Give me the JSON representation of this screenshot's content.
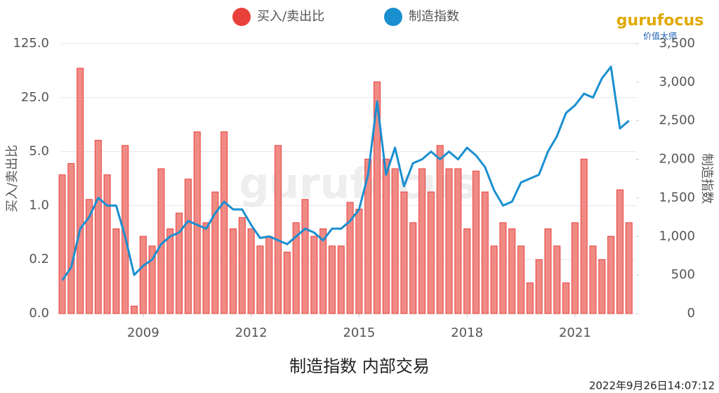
{
  "chart_data": {
    "type": "bar-line",
    "title": "制造指数 内部交易",
    "timestamp": "2022年9月26日14:07:12",
    "logo": "gurufocus",
    "logo_sub": "价值大师",
    "watermark": "gurufocus",
    "y_label": "买入/卖出比",
    "y2_label": "制造指数",
    "xlim": [
      2006.7,
      2022.7
    ],
    "xticks": [
      2009,
      2012,
      2015,
      2018,
      2021
    ],
    "ylim": [
      0.04,
      125
    ],
    "ylog": true,
    "yticks": [
      {
        "value": 0.04,
        "label": "0.0"
      },
      {
        "value": 0.2,
        "label": "0.2"
      },
      {
        "value": 1,
        "label": "1.0"
      },
      {
        "value": 5,
        "label": "5.0"
      },
      {
        "value": 25,
        "label": "25.0"
      },
      {
        "value": 125,
        "label": "125.0"
      }
    ],
    "y2lim": [
      0,
      3500
    ],
    "y2ticks": [
      0,
      500,
      {
        "value": 1000,
        "label": "1,000"
      },
      {
        "value": 1500,
        "label": "1,500"
      },
      {
        "value": 2000,
        "label": "2,000"
      },
      {
        "value": 2500,
        "label": "2,500"
      },
      {
        "value": 3000,
        "label": "3,000"
      },
      {
        "value": 3500,
        "label": "3,500"
      }
    ],
    "grid": true,
    "x": [
      2006.75,
      2007,
      2007.25,
      2007.5,
      2007.75,
      2008,
      2008.25,
      2008.5,
      2008.75,
      2009,
      2009.25,
      2009.5,
      2009.75,
      2010,
      2010.25,
      2010.5,
      2010.75,
      2011,
      2011.25,
      2011.5,
      2011.75,
      2012,
      2012.25,
      2012.5,
      2012.75,
      2013,
      2013.25,
      2013.5,
      2013.75,
      2014,
      2014.25,
      2014.5,
      2014.75,
      2015,
      2015.25,
      2015.5,
      2015.75,
      2016,
      2016.25,
      2016.5,
      2016.75,
      2017,
      2017.25,
      2017.5,
      2017.75,
      2018,
      2018.25,
      2018.5,
      2018.75,
      2019,
      2019.25,
      2019.5,
      2019.75,
      2020,
      2020.25,
      2020.5,
      2020.75,
      2021,
      2021.25,
      2021.5,
      2021.75,
      2022,
      2022.25,
      2022.5
    ],
    "series": [
      {
        "name": "买入/卖出比",
        "type": "bar",
        "color": "#e8413c",
        "axis": "y",
        "values": [
          2.5,
          3.5,
          60,
          1.2,
          7,
          2.5,
          0.5,
          6,
          0.05,
          0.4,
          0.3,
          3,
          0.5,
          0.8,
          2.2,
          9,
          0.6,
          1.5,
          9,
          0.5,
          0.7,
          0.5,
          0.3,
          0.4,
          6,
          0.25,
          0.6,
          1.2,
          0.4,
          0.5,
          0.3,
          0.3,
          1.1,
          0.9,
          4,
          40,
          4,
          3,
          1.5,
          0.6,
          3,
          1.5,
          6,
          3,
          3,
          0.5,
          2.8,
          1.5,
          0.3,
          0.6,
          0.5,
          0.3,
          0.1,
          0.2,
          0.5,
          0.3,
          0.1,
          0.6,
          4,
          0.3,
          0.2,
          0.4,
          1.6,
          0.6
        ]
      },
      {
        "name": "制造指数",
        "type": "line",
        "color": "#1a8fd0",
        "axis": "y2",
        "values": [
          430,
          600,
          1100,
          1250,
          1500,
          1400,
          1400,
          1000,
          500,
          620,
          700,
          900,
          1000,
          1050,
          1200,
          1150,
          1100,
          1300,
          1450,
          1350,
          1350,
          1150,
          980,
          1000,
          950,
          900,
          1000,
          1100,
          1050,
          950,
          1100,
          1100,
          1200,
          1350,
          1800,
          2750,
          1800,
          2150,
          1650,
          1950,
          2000,
          2100,
          2000,
          2100,
          2000,
          2150,
          2050,
          1900,
          1600,
          1400,
          1450,
          1700,
          1750,
          1800,
          2100,
          2300,
          2600,
          2700,
          2850,
          2800,
          3050,
          3200,
          2400,
          2500
        ]
      }
    ]
  }
}
